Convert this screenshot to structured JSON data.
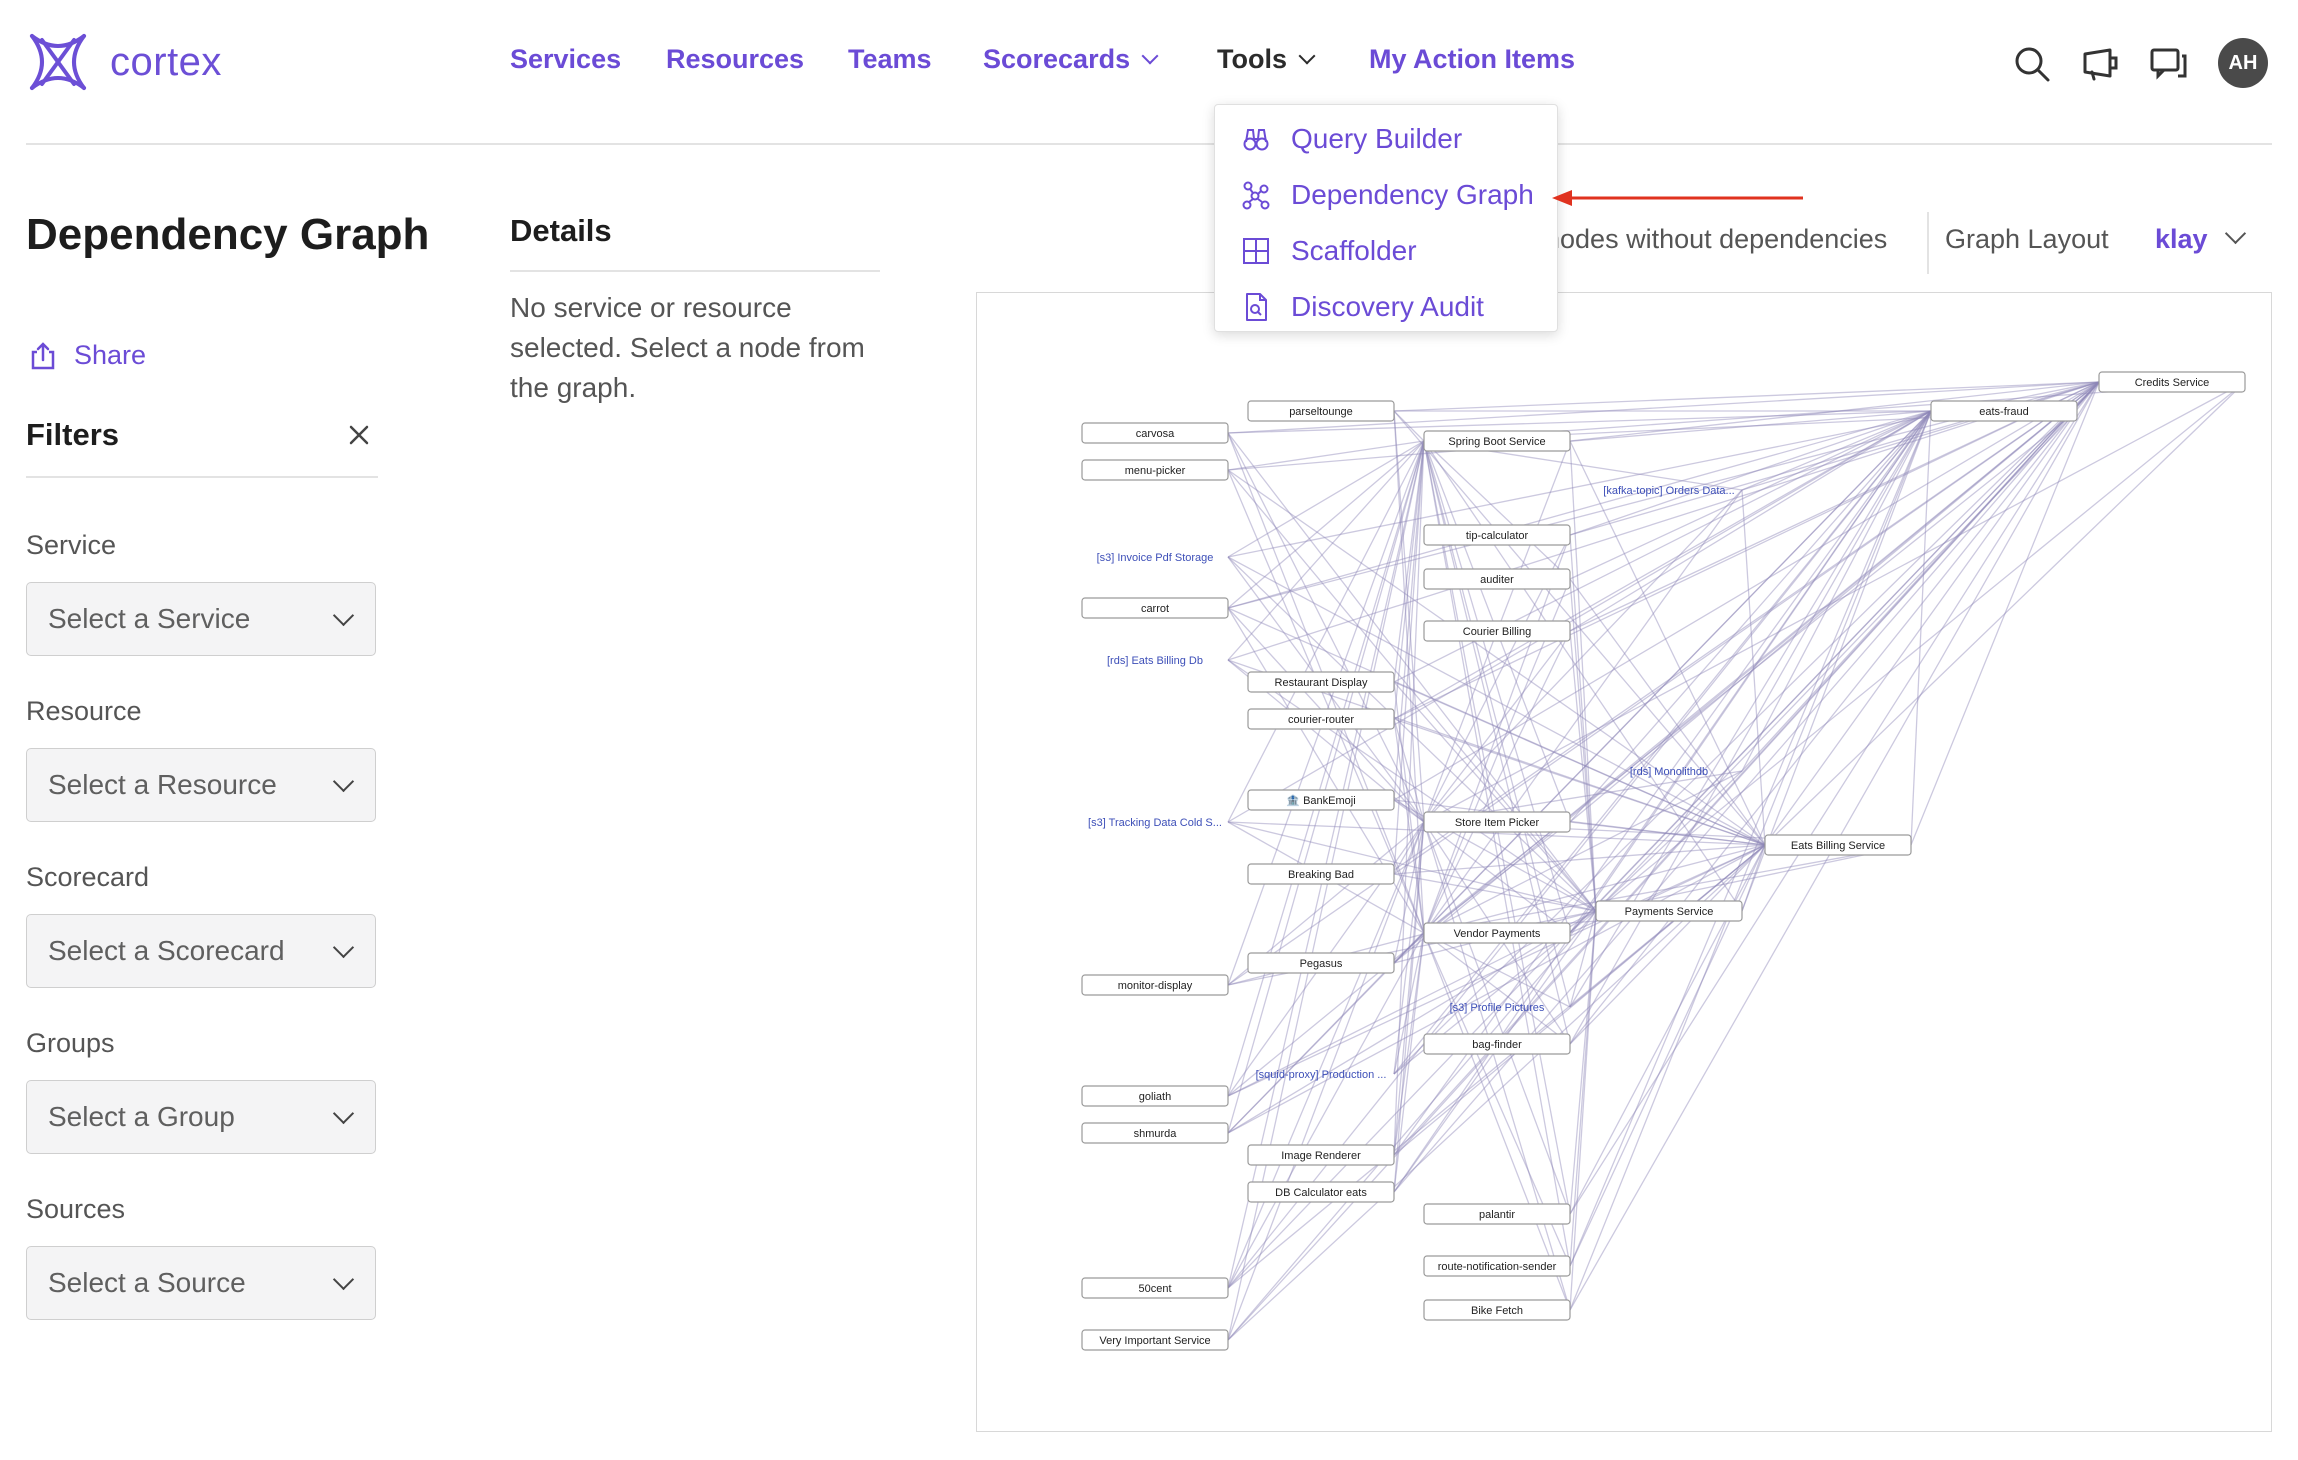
{
  "brand": {
    "name": "cortex"
  },
  "nav": {
    "items": [
      {
        "label": "Services"
      },
      {
        "label": "Resources"
      },
      {
        "label": "Teams"
      },
      {
        "label": "Scorecards"
      },
      {
        "label": "Tools"
      },
      {
        "label": "My Action Items"
      }
    ],
    "icons": [
      "search-icon",
      "megaphone-icon",
      "chat-icon"
    ],
    "avatar": "AH"
  },
  "tools_menu": {
    "items": [
      {
        "label": "Query Builder",
        "icon": "binoculars-icon"
      },
      {
        "label": "Dependency Graph",
        "icon": "graph-icon"
      },
      {
        "label": "Scaffolder",
        "icon": "grid-icon"
      },
      {
        "label": "Discovery Audit",
        "icon": "file-search-icon"
      }
    ]
  },
  "page": {
    "title": "Dependency Graph",
    "share": "Share"
  },
  "filters": {
    "title": "Filters",
    "fields": [
      {
        "label": "Service",
        "placeholder": "Select a Service"
      },
      {
        "label": "Resource",
        "placeholder": "Select a Resource"
      },
      {
        "label": "Scorecard",
        "placeholder": "Select a Scorecard"
      },
      {
        "label": "Groups",
        "placeholder": "Select a Group"
      },
      {
        "label": "Sources",
        "placeholder": "Select a Source"
      }
    ]
  },
  "details": {
    "title": "Details",
    "text": "No service or resource selected. Select a node from the graph."
  },
  "graph_controls": {
    "toggle_label": "nodes without dependencies",
    "layout_label": "Graph Layout",
    "layout_value": "klay"
  },
  "graph": {
    "nodes": [
      {
        "id": "credits",
        "label": "Credits Service"
      },
      {
        "id": "eatsfraud",
        "label": "eats-fraud"
      },
      {
        "id": "parseltounge",
        "label": "parseltounge"
      },
      {
        "id": "carvosa",
        "label": "carvosa"
      },
      {
        "id": "springboot",
        "label": "Spring Boot Service"
      },
      {
        "id": "menupicker",
        "label": "menu-picker"
      },
      {
        "id": "kafka",
        "label": "[kafka-topic] Orders Data...",
        "resource": true
      },
      {
        "id": "tipcalc",
        "label": "tip-calculator"
      },
      {
        "id": "s3invoice",
        "label": "[s3] Invoice Pdf Storage",
        "resource": true
      },
      {
        "id": "auditer",
        "label": "auditer"
      },
      {
        "id": "carrot",
        "label": "carrot"
      },
      {
        "id": "courierbilling",
        "label": "Courier Billing"
      },
      {
        "id": "rdseats",
        "label": "[rds] Eats Billing Db",
        "resource": true
      },
      {
        "id": "restdisplay",
        "label": "Restaurant Display"
      },
      {
        "id": "courierrouter",
        "label": "courier-router"
      },
      {
        "id": "rdsmono",
        "label": "[rds] Monolithdb",
        "resource": true
      },
      {
        "id": "bankemoji",
        "label": "🏦 BankEmoji"
      },
      {
        "id": "s3tracking",
        "label": "[s3] Tracking Data Cold S...",
        "resource": true
      },
      {
        "id": "storeitem",
        "label": "Store Item Picker"
      },
      {
        "id": "eatsbilling",
        "label": "Eats Billing Service"
      },
      {
        "id": "breakingbad",
        "label": "Breaking Bad"
      },
      {
        "id": "payments",
        "label": "Payments Service"
      },
      {
        "id": "vendorpay",
        "label": "Vendor Payments"
      },
      {
        "id": "pegasus",
        "label": "Pegasus"
      },
      {
        "id": "monitor",
        "label": "monitor-display"
      },
      {
        "id": "s3profile",
        "label": "[s3] Profile Pictures",
        "resource": true
      },
      {
        "id": "bagfinder",
        "label": "bag-finder"
      },
      {
        "id": "squid",
        "label": "[squid-proxy] Production ...",
        "resource": true
      },
      {
        "id": "goliath",
        "label": "goliath"
      },
      {
        "id": "shmurda",
        "label": "shmurda"
      },
      {
        "id": "imagerend",
        "label": "Image Renderer"
      },
      {
        "id": "dbcalc",
        "label": "DB Calculator eats"
      },
      {
        "id": "palantir",
        "label": "palantir"
      },
      {
        "id": "routenotif",
        "label": "route-notification-sender"
      },
      {
        "id": "50cent",
        "label": "50cent"
      },
      {
        "id": "bikefetch",
        "label": "Bike Fetch"
      },
      {
        "id": "veryimp",
        "label": "Very Important Service"
      }
    ]
  },
  "colors": {
    "accent": "#6b4bd6",
    "edge": "#8f88b8",
    "annotation_arrow": "#e0321f"
  }
}
